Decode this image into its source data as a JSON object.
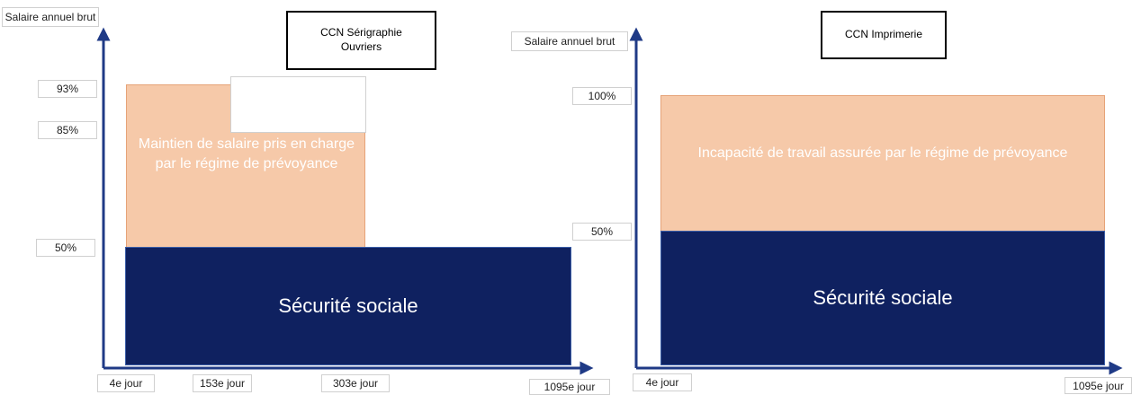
{
  "left": {
    "y_axis_label": "Salaire annuel brut",
    "title_line1": "CCN Sérigraphie",
    "title_line2": "Ouvriers",
    "y_ticks": [
      "93%",
      "85%",
      "50%"
    ],
    "x_ticks": [
      "4e jour",
      "153e jour",
      "303e jour",
      "1095e jour"
    ],
    "peach_label": "Maintien de salaire pris en charge par le régime de prévoyance",
    "navy_label": "Sécurité sociale"
  },
  "right": {
    "y_axis_label": "Salaire annuel brut",
    "title": "CCN Imprimerie",
    "y_ticks": [
      "100%",
      "50%"
    ],
    "x_ticks": [
      "4e jour",
      "1095e jour"
    ],
    "peach_label": "Incapacité de travail assurée par le régime de prévoyance",
    "navy_label": "Sécurité sociale"
  },
  "colors": {
    "navy": "#0f2160",
    "peach": "#f6c9a9",
    "axis": "#1f3a86"
  }
}
